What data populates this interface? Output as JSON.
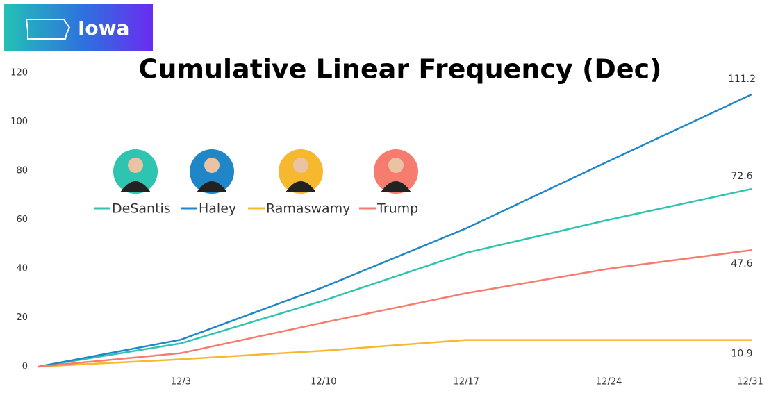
{
  "badge": "Iowa",
  "chart_data": {
    "type": "line",
    "title": "Cumulative Linear Frequency (Dec)",
    "categories": [
      null,
      "12/3",
      "12/10",
      "12/17",
      "12/24",
      "12/31"
    ],
    "series": [
      {
        "name": "DeSantis",
        "color": "#2ec4b0",
        "values": [
          0,
          9.5,
          27,
          46.5,
          60,
          72.6
        ]
      },
      {
        "name": "Haley",
        "color": "#1f86c8",
        "values": [
          0,
          11,
          32.5,
          56.5,
          84,
          111.2
        ]
      },
      {
        "name": "Ramaswamy",
        "color": "#f5b82e",
        "values": [
          0,
          3,
          6.5,
          10.9,
          10.9,
          10.9
        ]
      },
      {
        "name": "Trump",
        "color": "#f57c6e",
        "values": [
          0,
          5.5,
          18,
          30,
          40,
          47.6
        ]
      }
    ],
    "ylim": [
      0,
      120
    ],
    "yticks": [
      0,
      20,
      40,
      60,
      80,
      100,
      120
    ],
    "grid": false
  }
}
